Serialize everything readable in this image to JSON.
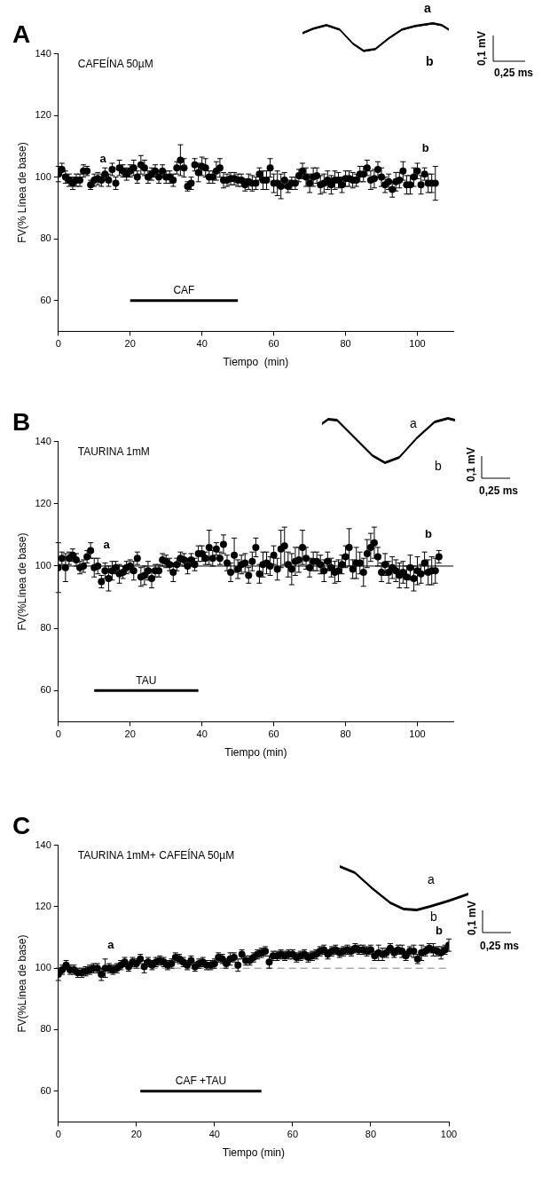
{
  "chart_data": [
    {
      "type": "scatter",
      "title": "A",
      "subtitle": "CAFEÍNA 50µM",
      "xlabel": "Tiempo  (min)",
      "ylabel": "FV(% Línea de base)",
      "xlim": [
        0,
        110
      ],
      "ylim": [
        50,
        140
      ],
      "xticks": [
        0,
        20,
        40,
        60,
        80,
        100
      ],
      "yticks": [
        60,
        80,
        100,
        120,
        140
      ],
      "grid": false,
      "legend": false,
      "annotations": [
        "a",
        "b",
        "a",
        "b",
        "0,1 mV",
        "0,25 ms"
      ],
      "series": [
        {
          "type": "line",
          "name": "CAF",
          "color": "#000000",
          "marker": "none",
          "x": [
            20,
            50
          ],
          "values": [
            60,
            60
          ]
        },
        {
          "type": "scatter",
          "color": "#000000",
          "marker": "circle",
          "x": [
            0,
            1,
            2,
            3,
            4,
            5,
            6,
            7,
            8,
            9,
            10,
            11,
            12,
            13,
            14,
            15,
            16,
            17,
            18,
            19,
            20,
            21,
            22,
            23,
            24,
            25,
            26,
            27,
            28,
            29,
            30,
            31,
            32,
            33,
            34,
            35,
            36,
            37,
            38,
            39,
            40,
            41,
            42,
            43,
            44,
            45,
            46,
            47,
            48,
            49,
            50,
            51,
            52,
            53,
            54,
            55,
            56,
            57,
            58,
            59,
            60,
            61,
            62,
            63,
            64,
            65,
            66,
            67,
            68,
            69,
            70,
            71,
            72,
            73,
            74,
            75,
            76,
            77,
            78,
            79,
            80,
            81,
            82,
            83,
            84,
            85,
            86,
            87,
            88,
            89,
            90,
            91,
            92,
            93,
            94,
            95,
            96,
            97,
            98,
            99,
            100,
            101,
            102,
            103,
            104,
            105
          ],
          "values": [
            101,
            102.5,
            100,
            99,
            98,
            99,
            99,
            102,
            102,
            97.5,
            99,
            99.5,
            99,
            101,
            99,
            102.5,
            98,
            103,
            102,
            101,
            102,
            103,
            100,
            104,
            103,
            100,
            101,
            102,
            100,
            102,
            100,
            100,
            99,
            103,
            105.5,
            103,
            97,
            98,
            104,
            101.5,
            103.5,
            103,
            100,
            100,
            102,
            103,
            99,
            99,
            99.5,
            99.5,
            99,
            99,
            97.5,
            98.5,
            98,
            98,
            101,
            99,
            99,
            103,
            98,
            98,
            97,
            99,
            97,
            98,
            98,
            100.5,
            102,
            100,
            98,
            100,
            100.5,
            97.5,
            98,
            99,
            97.5,
            99,
            99,
            97.5,
            99.5,
            99.5,
            99,
            99,
            101,
            101,
            103,
            99,
            99.5,
            102.5,
            100,
            97.5,
            98.5,
            96,
            98.5,
            99,
            102,
            97.5,
            97.5,
            100,
            102,
            97.5,
            101,
            98,
            98,
            98
          ],
          "errors": [
            2.5,
            2,
            2,
            2,
            2,
            2,
            2,
            2,
            1.5,
            1.5,
            2,
            2,
            2,
            2,
            2,
            2,
            2,
            2.5,
            2,
            2,
            2,
            2.5,
            2,
            3,
            2.5,
            2,
            2,
            2,
            2,
            2,
            2,
            2,
            2,
            2,
            5,
            3,
            1.5,
            2,
            2,
            3,
            3,
            3,
            2,
            2,
            3,
            3,
            2.5,
            2,
            2,
            2,
            2,
            2,
            2,
            2.5,
            2.5,
            2,
            2,
            3,
            3,
            3,
            3,
            4,
            4,
            2.5,
            2,
            2,
            2,
            2,
            2.5,
            3,
            3,
            3,
            2.5,
            3,
            3,
            3,
            3,
            3,
            2.5,
            2.5,
            2.5,
            2.5,
            2.5,
            2,
            2.5,
            2.5,
            2.5,
            3,
            3,
            2.5,
            3,
            2.5,
            2.5,
            2.5,
            3,
            2.5,
            3,
            3,
            3,
            3,
            2.5,
            3,
            2,
            3,
            3,
            5.5
          ]
        }
      ]
    },
    {
      "type": "scatter",
      "title": "B",
      "subtitle": "TAURINA 1mM",
      "xlabel": "Tiempo (min)",
      "ylabel": "FV(%Línea de base)",
      "xlim": [
        0,
        110
      ],
      "ylim": [
        50,
        140
      ],
      "xticks": [
        0,
        20,
        40,
        60,
        80,
        100
      ],
      "yticks": [
        60,
        80,
        100,
        120,
        140
      ],
      "grid": false,
      "legend": false,
      "ref_lines": [
        {
          "axis": "y",
          "value": 100,
          "color": "#000000"
        }
      ],
      "annotations": [
        "a",
        "b",
        "a",
        "b",
        "0,1 mV",
        "0,25 ms"
      ],
      "series": [
        {
          "type": "line",
          "name": "TAU",
          "color": "#000000",
          "marker": "none",
          "x": [
            10,
            39
          ],
          "values": [
            60,
            60
          ]
        },
        {
          "type": "scatter",
          "color": "#000000",
          "marker": "circle",
          "x": [
            0,
            1,
            2,
            3,
            4,
            5,
            6,
            7,
            8,
            9,
            10,
            11,
            12,
            13,
            14,
            15,
            16,
            17,
            18,
            19,
            20,
            21,
            22,
            23,
            24,
            25,
            26,
            27,
            28,
            29,
            30,
            31,
            32,
            33,
            34,
            35,
            36,
            37,
            38,
            39,
            40,
            41,
            42,
            43,
            44,
            45,
            46,
            47,
            48,
            49,
            50,
            51,
            52,
            53,
            54,
            55,
            56,
            57,
            58,
            59,
            60,
            61,
            62,
            63,
            64,
            65,
            66,
            67,
            68,
            69,
            70,
            71,
            72,
            73,
            74,
            75,
            76,
            77,
            78,
            79,
            80,
            81,
            82,
            83,
            84,
            85,
            86,
            87,
            88,
            89,
            90,
            91,
            92,
            93,
            94,
            95,
            96,
            97,
            98,
            99,
            100,
            101,
            102,
            103,
            104,
            105,
            106
          ],
          "values": [
            99.5,
            102.5,
            99.5,
            102.5,
            103.5,
            102,
            99.5,
            100,
            103,
            105,
            99.5,
            100,
            95,
            98.5,
            96,
            98.5,
            99.5,
            97.5,
            98,
            99.5,
            100,
            98.5,
            102.5,
            96.5,
            97,
            98.5,
            96,
            98.5,
            98.5,
            102,
            101.5,
            100.5,
            98,
            100.5,
            102.5,
            102,
            100,
            102,
            100.5,
            104,
            104,
            102.5,
            106,
            102.5,
            105.5,
            102.5,
            107,
            101,
            98,
            103.5,
            99,
            100.5,
            101,
            97,
            101.5,
            106,
            97.5,
            100.5,
            101,
            100,
            103.5,
            99,
            105.5,
            106.5,
            100.5,
            99,
            101.5,
            102,
            106,
            102.5,
            99.5,
            101.5,
            101.5,
            100.5,
            98.5,
            101.5,
            99.5,
            98,
            98.5,
            100.5,
            103,
            106,
            99,
            101,
            101,
            98,
            104,
            106,
            107.5,
            103,
            98,
            100.5,
            98,
            99.5,
            98.5,
            97,
            98,
            96.5,
            99.5,
            96,
            98.5,
            97.5,
            101,
            98,
            98.5,
            98.5,
            103
          ],
          "errors": [
            8,
            2,
            4.5,
            2,
            2,
            2,
            2,
            2,
            2,
            2.5,
            3,
            2.5,
            2,
            2.5,
            4,
            3,
            2,
            3,
            2,
            2,
            2,
            3,
            2,
            3,
            3,
            3,
            3,
            2,
            2,
            2,
            2,
            2,
            3,
            2,
            2,
            2,
            2.5,
            2,
            2,
            2.5,
            2.5,
            2,
            5.5,
            2.5,
            2,
            2,
            3,
            2.5,
            3,
            5.5,
            3,
            3,
            3,
            2.5,
            3,
            3,
            3,
            4,
            3.5,
            3,
            3,
            3.5,
            6,
            6,
            4,
            5,
            4.5,
            4,
            5.5,
            3.5,
            3,
            3,
            3,
            3,
            3.5,
            3,
            3,
            3.5,
            3.5,
            3,
            3.5,
            6,
            3,
            5,
            3.5,
            4.5,
            4.5,
            4.5,
            5,
            3,
            3,
            3.5,
            3.5,
            3.5,
            3.5,
            4,
            3.5,
            3.5,
            4,
            4,
            4.5,
            3,
            3.5,
            4,
            4.5,
            4,
            2
          ]
        }
      ]
    },
    {
      "type": "scatter",
      "title": "C",
      "subtitle": "TAURINA 1mM+ CAFEÍNA 50µM",
      "xlabel": "Tiempo (min)",
      "ylabel": "FV(%Línea de base)",
      "xlim": [
        0,
        100
      ],
      "ylim": [
        50,
        140
      ],
      "xticks": [
        0,
        20,
        40,
        60,
        80,
        100
      ],
      "yticks": [
        60,
        80,
        100,
        120,
        140
      ],
      "grid": false,
      "legend": false,
      "ref_lines": [
        {
          "axis": "y",
          "value": 100,
          "color": "#808080",
          "line_style": "dashed"
        }
      ],
      "annotations": [
        "a",
        "b",
        "a",
        "b",
        "0,1 mV",
        "0,25 ms"
      ],
      "series": [
        {
          "type": "line",
          "name": "CAF +TAU",
          "color": "#000000",
          "marker": "none",
          "x": [
            21,
            52
          ],
          "values": [
            60,
            60
          ]
        },
        {
          "type": "scatter",
          "color": "#000000",
          "marker": "circle",
          "x": [
            0,
            1,
            2,
            3,
            4,
            5,
            6,
            7,
            8,
            9,
            10,
            11,
            12,
            13,
            14,
            15,
            16,
            17,
            18,
            19,
            20,
            21,
            22,
            23,
            24,
            25,
            26,
            27,
            28,
            29,
            30,
            31,
            32,
            33,
            34,
            35,
            36,
            37,
            38,
            39,
            40,
            41,
            42,
            43,
            44,
            45,
            46,
            47,
            48,
            49,
            50,
            51,
            52,
            53,
            54,
            55,
            56,
            57,
            58,
            59,
            60,
            61,
            62,
            63,
            64,
            65,
            66,
            67,
            68,
            69,
            70,
            71,
            72,
            73,
            74,
            75,
            76,
            77,
            78,
            79,
            80,
            81,
            82,
            83,
            84,
            85,
            86,
            87,
            88,
            89,
            90,
            91,
            92,
            93,
            94,
            95,
            96,
            97,
            98,
            99,
            100
          ],
          "values": [
            98,
            99.5,
            101,
            99.5,
            99.5,
            98.5,
            98.5,
            99,
            99.5,
            100,
            100,
            98,
            100,
            100,
            99.5,
            100,
            101,
            102,
            100.5,
            102,
            101.5,
            103,
            100.5,
            102,
            101,
            102,
            102.5,
            102,
            101,
            101.5,
            103.5,
            103,
            102,
            101,
            102.5,
            100.5,
            101.5,
            102,
            101,
            101,
            101.5,
            103.5,
            103,
            101.5,
            103,
            103.5,
            101,
            104.5,
            102.5,
            102.5,
            103.5,
            104.5,
            105,
            105.5,
            102,
            104,
            104,
            104.5,
            104,
            104.5,
            104.5,
            103.5,
            104,
            104.5,
            103.5,
            104,
            104.5,
            105.5,
            106,
            104.5,
            105.5,
            106,
            105,
            105.5,
            106,
            105.5,
            106.5,
            106,
            106,
            105.5,
            106,
            104,
            105,
            104.5,
            105,
            106.5,
            105,
            106,
            105.5,
            104,
            105.5,
            105.5,
            103,
            105,
            105.5,
            106.5,
            106,
            105.5,
            105,
            106,
            107.5
          ],
          "errors": [
            2,
            1.5,
            1.5,
            1.5,
            1.5,
            1.5,
            1.5,
            1.5,
            1.5,
            1.5,
            1.5,
            2,
            3,
            1.5,
            1.5,
            1.5,
            1.5,
            1.5,
            1.5,
            1.5,
            1.5,
            1.5,
            2,
            1.5,
            1.5,
            1.5,
            1.5,
            1.5,
            1.5,
            1.5,
            1.5,
            1.5,
            1.5,
            1.5,
            1.5,
            1.5,
            1.5,
            1.5,
            1.5,
            1.5,
            1.5,
            1.5,
            1.5,
            1.5,
            2,
            1.5,
            2,
            1.5,
            1.5,
            1.5,
            1.5,
            1.5,
            1.5,
            1.5,
            2,
            1.5,
            1.5,
            1.5,
            1.5,
            1.5,
            1.5,
            1.5,
            1.5,
            1.5,
            1.5,
            1.5,
            1.5,
            1.5,
            1.5,
            1.5,
            1.5,
            1.5,
            1.5,
            1.5,
            1.5,
            1.5,
            1.5,
            1.5,
            1.5,
            1.5,
            1.5,
            1.5,
            2.5,
            2,
            1.5,
            1.5,
            1.5,
            1.5,
            2,
            1.5,
            1.5,
            2,
            1.5,
            2.5,
            1.5,
            1.5,
            2,
            1.5,
            2,
            1.5,
            2
          ]
        }
      ]
    }
  ]
}
